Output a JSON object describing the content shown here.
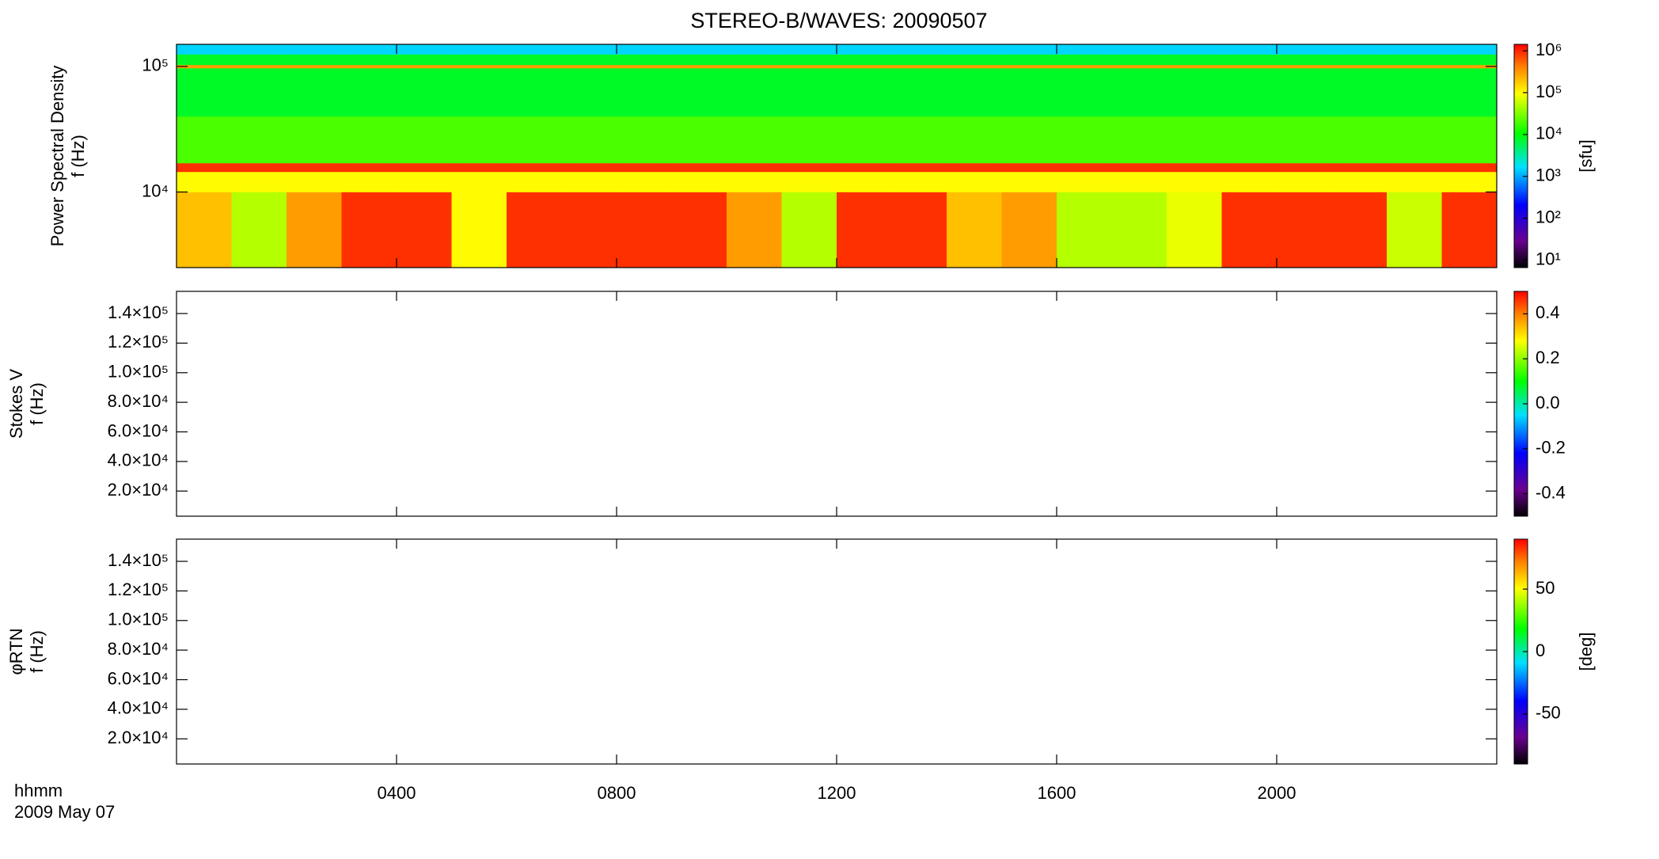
{
  "title": "STEREO-B/WAVES: 20090507",
  "x_axis": {
    "label": "hhmm",
    "date": "2009 May 07",
    "xlim": [
      0,
      24
    ],
    "xticks": [
      {
        "value": 4,
        "label": "0400"
      },
      {
        "value": 8,
        "label": "0800"
      },
      {
        "value": 12,
        "label": "1200"
      },
      {
        "value": 16,
        "label": "1600"
      },
      {
        "value": 20,
        "label": "2000"
      }
    ]
  },
  "chart_data": [
    {
      "type": "heatmap",
      "ylabel": [
        "Power Spectral Density",
        "f (Hz)"
      ],
      "ylog": true,
      "ylim": [
        2500,
        150000
      ],
      "yticks": [
        {
          "value": 10000,
          "label": "10⁴"
        },
        {
          "value": 100000,
          "label": "10⁵"
        }
      ],
      "colorbar": {
        "label": "[sfu]",
        "log": true,
        "clim": [
          6.6,
          1430000
        ],
        "ticks": [
          {
            "value": 10,
            "label": "10¹"
          },
          {
            "value": 100,
            "label": "10²"
          },
          {
            "value": 1000,
            "label": "10³"
          },
          {
            "value": 10000,
            "label": "10⁴"
          },
          {
            "value": 100000,
            "label": "10⁵"
          },
          {
            "value": 1000000,
            "label": "10⁶"
          }
        ]
      },
      "x_bins": [
        0,
        1,
        2,
        3,
        4,
        5,
        6,
        7,
        8,
        9,
        10,
        11,
        12,
        13,
        14,
        15,
        16,
        17,
        18,
        19,
        20,
        21,
        22,
        23,
        24
      ],
      "y_bins": [
        2500,
        10000,
        14500,
        17000,
        40000,
        97000,
        103000,
        125000,
        150000
      ],
      "z": [
        [
          200000,
          50000,
          300000,
          900000,
          900000,
          100000,
          900000,
          900000,
          900000,
          900000,
          300000,
          50000,
          900000,
          900000,
          200000,
          300000,
          50000,
          50000,
          80000,
          900000,
          900000,
          900000,
          60000,
          900000
        ],
        [
          100000,
          100000,
          100000,
          100000,
          100000,
          100000,
          100000,
          100000,
          100000,
          100000,
          100000,
          100000,
          100000,
          100000,
          100000,
          100000,
          100000,
          100000,
          100000,
          100000,
          100000,
          100000,
          100000,
          100000
        ],
        [
          900000,
          900000,
          900000,
          900000,
          900000,
          900000,
          900000,
          900000,
          900000,
          900000,
          900000,
          900000,
          900000,
          900000,
          900000,
          900000,
          900000,
          900000,
          900000,
          900000,
          900000,
          900000,
          900000,
          900000
        ],
        [
          20000,
          20000,
          20000,
          20000,
          20000,
          20000,
          20000,
          20000,
          20000,
          20000,
          20000,
          20000,
          20000,
          20000,
          20000,
          20000,
          20000,
          20000,
          20000,
          20000,
          20000,
          20000,
          20000,
          20000
        ],
        [
          8000,
          8000,
          8000,
          8000,
          8000,
          8000,
          8000,
          8000,
          8000,
          8000,
          8000,
          8000,
          8000,
          8000,
          8000,
          8000,
          8000,
          8000,
          8000,
          8000,
          8000,
          8000,
          8000,
          8000
        ],
        [
          300000,
          300000,
          300000,
          300000,
          300000,
          300000,
          300000,
          300000,
          300000,
          300000,
          300000,
          300000,
          300000,
          300000,
          300000,
          300000,
          300000,
          300000,
          300000,
          300000,
          300000,
          300000,
          300000,
          300000
        ],
        [
          8000,
          8000,
          8000,
          8000,
          8000,
          8000,
          8000,
          8000,
          8000,
          8000,
          8000,
          8000,
          8000,
          8000,
          8000,
          8000,
          8000,
          8000,
          8000,
          8000,
          8000,
          8000,
          8000,
          8000
        ],
        [
          1500,
          1500,
          1500,
          1500,
          1500,
          1500,
          1500,
          1500,
          1500,
          1500,
          1500,
          1500,
          1500,
          1500,
          1500,
          1500,
          1500,
          1500,
          1500,
          1500,
          1500,
          1500,
          1500,
          1500
        ]
      ]
    },
    {
      "type": "heatmap",
      "ylabel": [
        "Stokes V",
        "f (Hz)"
      ],
      "ylog": false,
      "ylim": [
        3000,
        155000
      ],
      "yticks": [
        {
          "value": 20000,
          "label": "2.0×10⁴"
        },
        {
          "value": 40000,
          "label": "4.0×10⁴"
        },
        {
          "value": 60000,
          "label": "6.0×10⁴"
        },
        {
          "value": 80000,
          "label": "8.0×10⁴"
        },
        {
          "value": 100000,
          "label": "1.0×10⁵"
        },
        {
          "value": 120000,
          "label": "1.2×10⁵"
        },
        {
          "value": 140000,
          "label": "1.4×10⁵"
        }
      ],
      "colorbar": {
        "log": false,
        "clim": [
          -0.5,
          0.5
        ],
        "ticks": [
          -0.4,
          -0.2,
          {
            "value": 0,
            "label": "0.0"
          },
          0.2,
          0.4
        ]
      }
    },
    {
      "type": "heatmap",
      "ylabel": [
        "φRTN",
        "f (Hz)"
      ],
      "ylog": false,
      "ylim": [
        3000,
        155000
      ],
      "yticks": [
        {
          "value": 20000,
          "label": "2.0×10⁴"
        },
        {
          "value": 40000,
          "label": "4.0×10⁴"
        },
        {
          "value": 60000,
          "label": "6.0×10⁴"
        },
        {
          "value": 80000,
          "label": "8.0×10⁴"
        },
        {
          "value": 100000,
          "label": "1.0×10⁵"
        },
        {
          "value": 120000,
          "label": "1.2×10⁵"
        },
        {
          "value": 140000,
          "label": "1.4×10⁵"
        }
      ],
      "colorbar": {
        "label": "[deg]",
        "log": false,
        "clim": [
          -90,
          90
        ],
        "ticks": [
          -50,
          0,
          50
        ]
      }
    }
  ]
}
